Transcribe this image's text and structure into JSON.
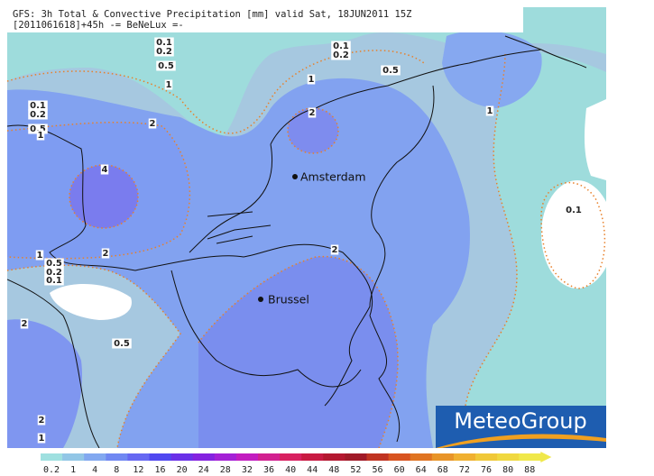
{
  "header": {
    "line1": "GFS: 3h Total & Convective Precipitation [mm] valid Sat, 18JUN2011 15Z",
    "line2": "[2011061618]+45h -= BeNeLux =-"
  },
  "cities": [
    "Amsterdam",
    "Brussel"
  ],
  "contour_labels": [
    "0.1",
    "0.2",
    "0.5",
    "1",
    "0.1",
    "0.2",
    "0.5",
    "1",
    "1",
    "2",
    "2",
    "0.1",
    "0.2",
    "0.5",
    "1",
    "4",
    "2",
    "1",
    "0.5",
    "0.2",
    "0.1",
    "2",
    "0.1",
    "2",
    "0.5",
    "2",
    "1"
  ],
  "logo": "MeteoGroup",
  "legend": {
    "ticks": [
      0.2,
      1,
      4,
      8,
      12,
      16,
      20,
      24,
      28,
      32,
      36,
      40,
      44,
      48,
      52,
      56,
      60,
      64,
      68,
      72,
      76,
      80,
      88
    ],
    "colors": [
      "#9fe0e0",
      "#92c6e6",
      "#82a8f0",
      "#7088f2",
      "#6668f2",
      "#5048f0",
      "#6a30e8",
      "#8422e0",
      "#a420d6",
      "#c21cc0",
      "#d22090",
      "#d82060",
      "#c81a42",
      "#b41830",
      "#a01a28",
      "#c03422",
      "#d85420",
      "#e07422",
      "#e89428",
      "#f0b030",
      "#f0c838",
      "#f0d840",
      "#f0e84a"
    ]
  }
}
